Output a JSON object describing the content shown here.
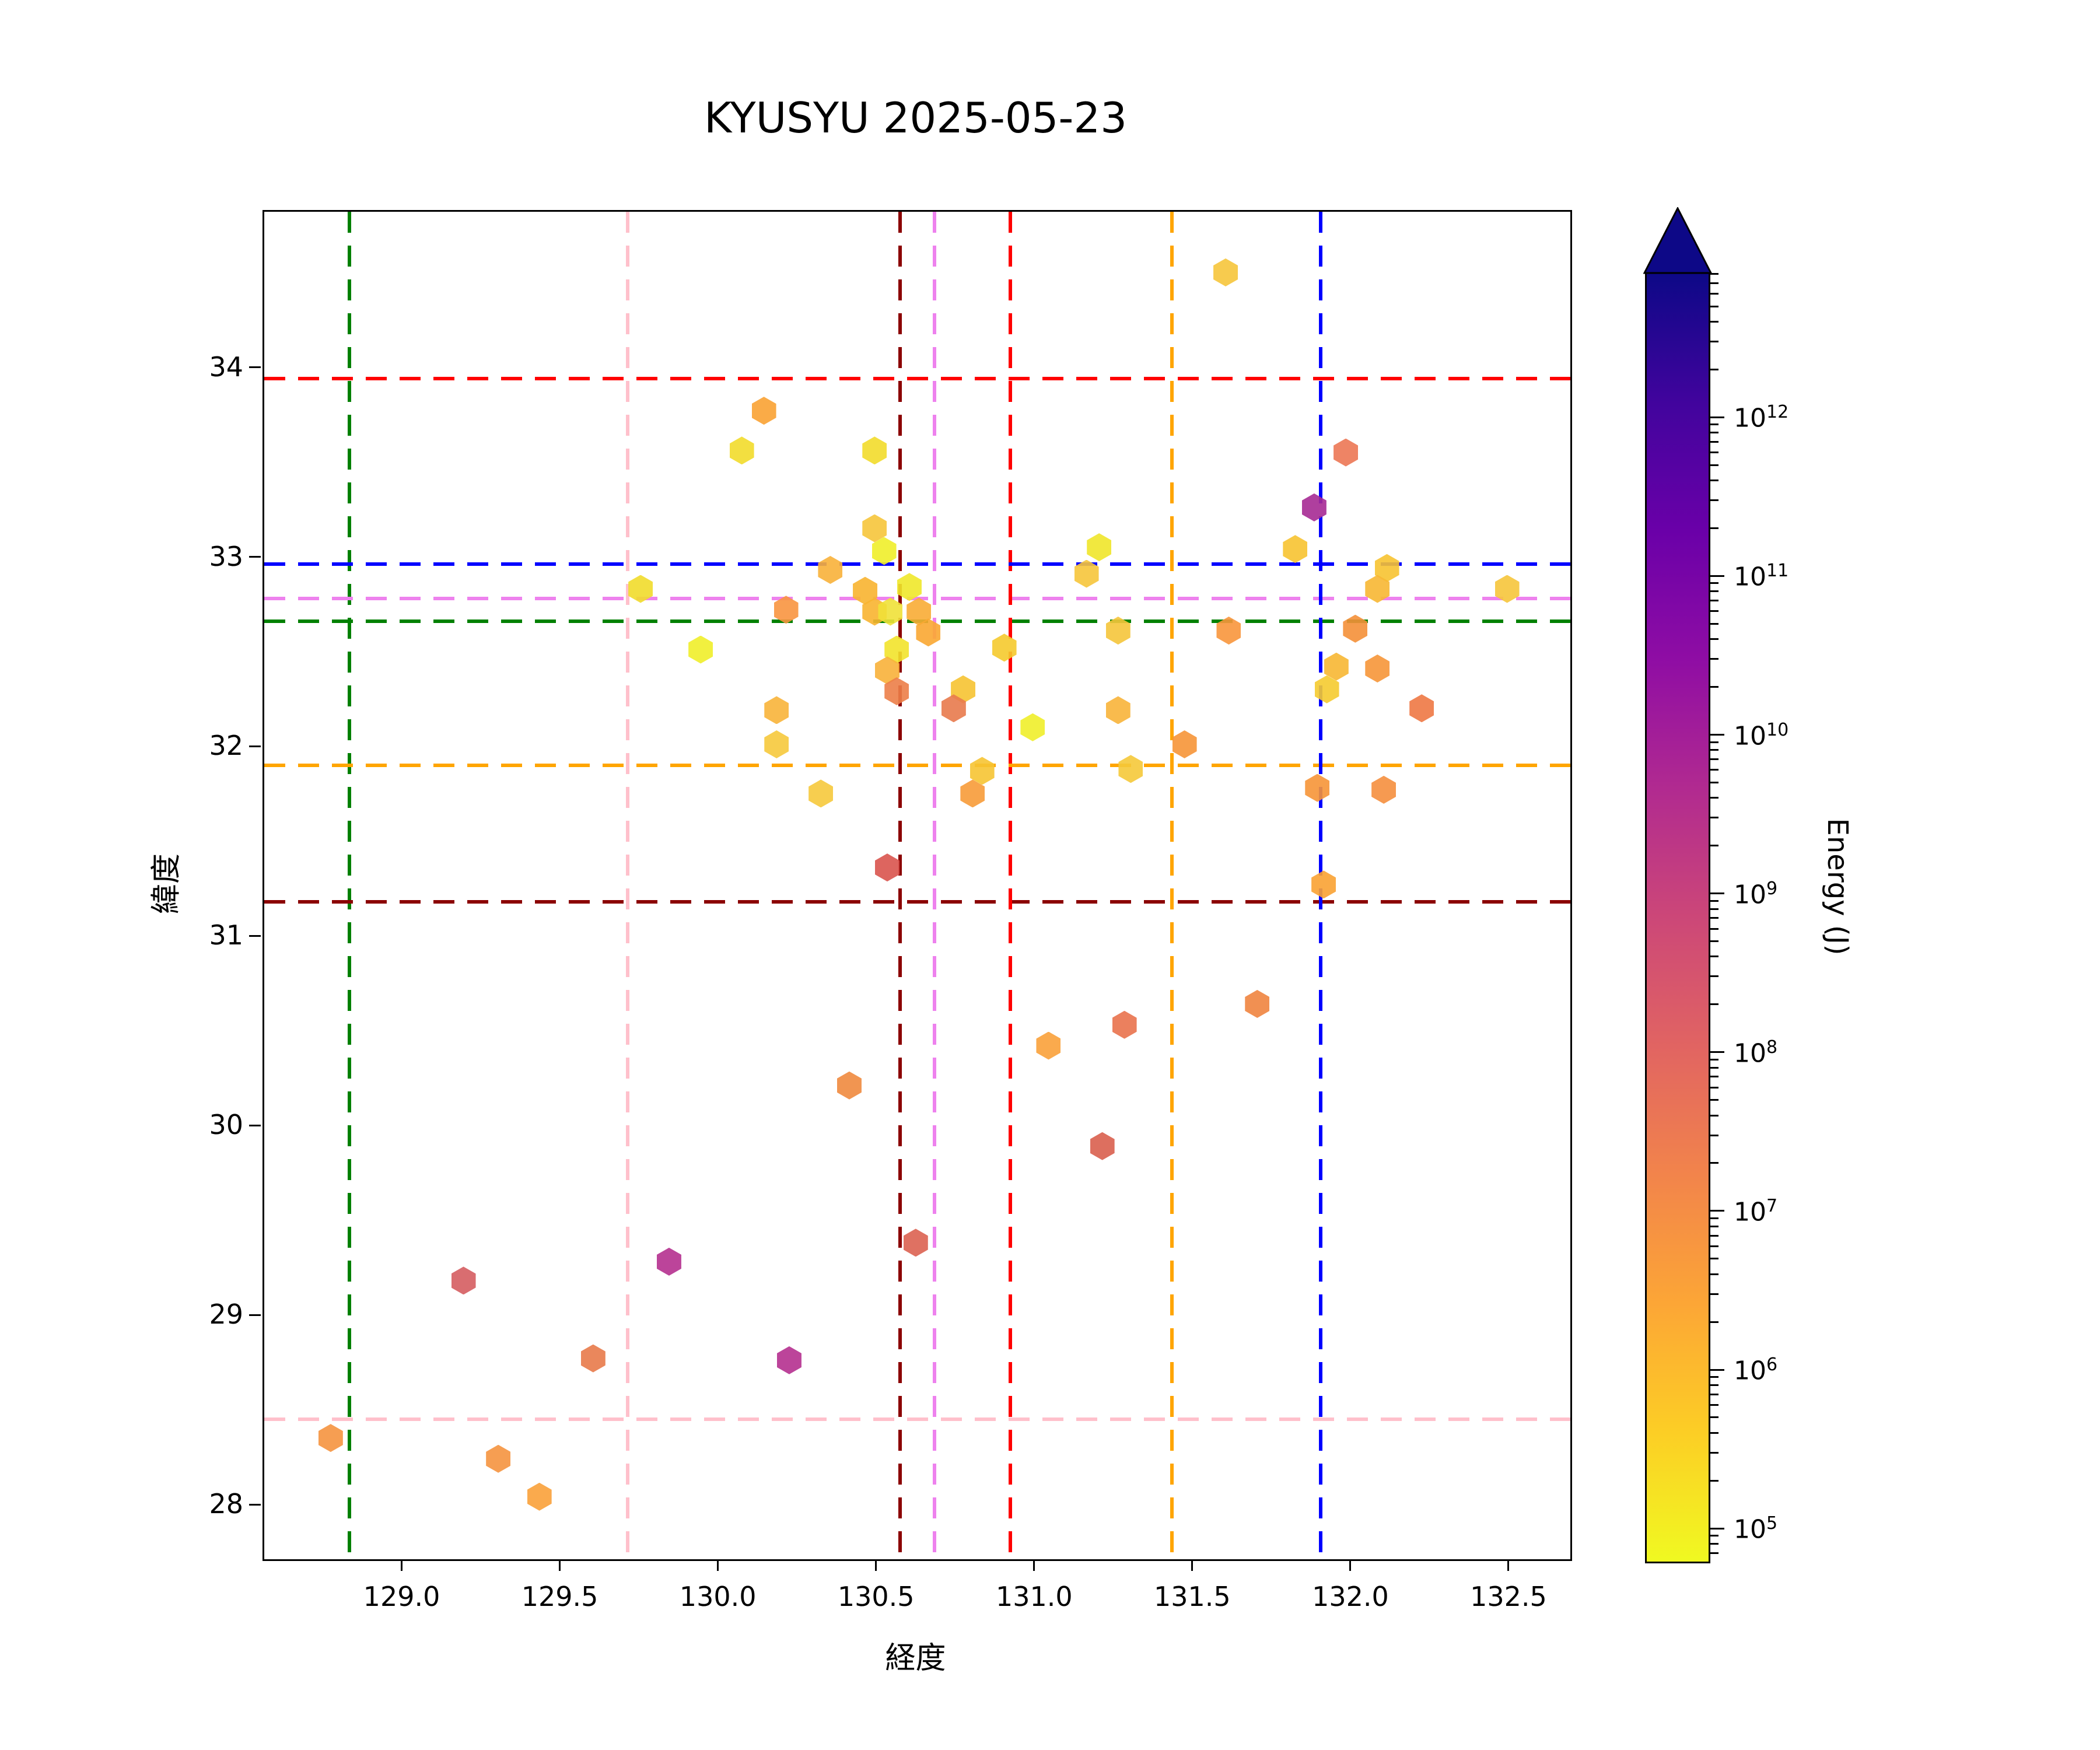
{
  "figure": {
    "title": "KYUSYU 2025-05-23"
  },
  "chart_data": {
    "type": "scatter",
    "title": "KYUSYU 2025-05-23",
    "xlabel": "経度",
    "ylabel": "緯度",
    "xlim": [
      128.56,
      132.69
    ],
    "ylim": [
      27.72,
      34.83
    ],
    "xticks": [
      129.0,
      129.5,
      130.0,
      130.5,
      131.0,
      131.5,
      132.0,
      132.5
    ],
    "yticks": [
      28,
      29,
      30,
      31,
      32,
      33,
      34
    ],
    "grid": false,
    "marker": "hexagon",
    "legend": "none",
    "colorbar": {
      "label": "Energy (J)",
      "scale": "log",
      "extend": "max",
      "colormap": "plasma reversed (yellow = low energy, dark navy = high energy)",
      "tick_exponents": [
        5,
        6,
        7,
        8,
        9,
        10,
        11,
        12
      ],
      "vmin_exp": 4.78,
      "vmax_exp": 12.92,
      "gradient_stops_top_to_bottom": [
        "#0d0887",
        "#41049d",
        "#6a00a8",
        "#8f0da4",
        "#b12a90",
        "#cc4778",
        "#e16462",
        "#f2844b",
        "#fca636",
        "#fcce25",
        "#f0f921"
      ],
      "arrow_color": "#0d0887"
    },
    "crosshairs": [
      {
        "name": "green",
        "color": "#008000",
        "lon": 128.83,
        "lat": 32.67
      },
      {
        "name": "pink",
        "color": "#ffc0cb",
        "lon": 129.71,
        "lat": 28.46
      },
      {
        "name": "darkred",
        "color": "#8b0000",
        "lon": 130.57,
        "lat": 31.19
      },
      {
        "name": "violet",
        "color": "#ee82ee",
        "lon": 130.68,
        "lat": 32.79
      },
      {
        "name": "red",
        "color": "#ff0000",
        "lon": 130.92,
        "lat": 33.95
      },
      {
        "name": "orange",
        "color": "#ffa500",
        "lon": 131.43,
        "lat": 31.91
      },
      {
        "name": "blue",
        "color": "#0000ff",
        "lon": 131.9,
        "lat": 32.97
      }
    ],
    "points_columns": [
      "lon",
      "lat",
      "color",
      "energy_j"
    ],
    "points": [
      [
        131.6,
        34.51,
        "#f6c53b",
        800000.0
      ],
      [
        130.14,
        33.78,
        "#f9a233",
        5000000.0
      ],
      [
        130.07,
        33.57,
        "#f2dc2b",
        300000.0
      ],
      [
        130.49,
        33.57,
        "#f2dc2b",
        300000.0
      ],
      [
        131.98,
        33.56,
        "#ec7754",
        50000000.0
      ],
      [
        131.88,
        33.27,
        "#a62a93",
        10000000000.0
      ],
      [
        130.49,
        33.16,
        "#f6c53b",
        800000.0
      ],
      [
        130.52,
        33.04,
        "#f0ee2a",
        100000.0
      ],
      [
        131.2,
        33.06,
        "#f0e62a",
        150000.0
      ],
      [
        131.16,
        32.92,
        "#f6c53b",
        800000.0
      ],
      [
        131.82,
        33.05,
        "#f7c331",
        900000.0
      ],
      [
        130.35,
        32.94,
        "#f8b13a",
        2000000.0
      ],
      [
        129.75,
        32.84,
        "#f1dc2b",
        300000.0
      ],
      [
        130.46,
        32.83,
        "#f8b430",
        2000000.0
      ],
      [
        130.6,
        32.85,
        "#f0e82a",
        120000.0
      ],
      [
        132.11,
        32.95,
        "#f7c331",
        900000.0
      ],
      [
        132.08,
        32.84,
        "#f7b733",
        1500000.0
      ],
      [
        132.49,
        32.84,
        "#f6c53b",
        800000.0
      ],
      [
        130.49,
        32.72,
        "#f8b430",
        2000000.0
      ],
      [
        130.54,
        32.72,
        "#f0e139",
        200000.0
      ],
      [
        130.63,
        32.72,
        "#f8ac35",
        2500000.0
      ],
      [
        130.66,
        32.61,
        "#f9a732",
        4000000.0
      ],
      [
        130.21,
        32.73,
        "#f89540",
        8000000.0
      ],
      [
        129.94,
        32.52,
        "#f0ee2a",
        100000.0
      ],
      [
        130.56,
        32.52,
        "#f2e32b",
        200000.0
      ],
      [
        130.53,
        32.41,
        "#f8b13a",
        2000000.0
      ],
      [
        130.56,
        32.3,
        "#ec7e48",
        30000000.0
      ],
      [
        130.9,
        32.53,
        "#f5ca2e",
        700000.0
      ],
      [
        130.77,
        32.31,
        "#f6c332",
        900000.0
      ],
      [
        130.74,
        32.21,
        "#e87a4c",
        40000000.0
      ],
      [
        130.99,
        32.11,
        "#f0ee2a",
        100000.0
      ],
      [
        130.18,
        32.2,
        "#f8b43a",
        2000000.0
      ],
      [
        130.18,
        32.02,
        "#f6c93c",
        700000.0
      ],
      [
        131.26,
        32.62,
        "#f5c53b",
        800000.0
      ],
      [
        131.61,
        32.62,
        "#f8963c",
        8000000.0
      ],
      [
        132.01,
        32.63,
        "#f49038",
        10000000.0
      ],
      [
        131.95,
        32.43,
        "#f7b733",
        1500000.0
      ],
      [
        132.08,
        32.42,
        "#f69638",
        8000000.0
      ],
      [
        131.92,
        32.31,
        "#f5cb30",
        600000.0
      ],
      [
        132.22,
        32.21,
        "#ee7844",
        30000000.0
      ],
      [
        131.26,
        32.2,
        "#f8b43a",
        2000000.0
      ],
      [
        131.47,
        32.02,
        "#f69537",
        8000000.0
      ],
      [
        131.3,
        31.89,
        "#f5c93a",
        700000.0
      ],
      [
        130.83,
        31.88,
        "#f6c433",
        900000.0
      ],
      [
        130.8,
        31.76,
        "#f79b39",
        6000000.0
      ],
      [
        130.32,
        31.76,
        "#f6c93c",
        700000.0
      ],
      [
        131.89,
        31.79,
        "#f69537",
        8000000.0
      ],
      [
        132.1,
        31.78,
        "#f58f3e",
        10000000.0
      ],
      [
        130.53,
        31.37,
        "#d9544e",
        100000000.0
      ],
      [
        131.91,
        31.28,
        "#f9a233",
        5000000.0
      ],
      [
        131.7,
        30.65,
        "#f0843f",
        20000000.0
      ],
      [
        130.41,
        30.22,
        "#f08a3e",
        15000000.0
      ],
      [
        131.04,
        30.43,
        "#f9a13a",
        5000000.0
      ],
      [
        131.28,
        30.54,
        "#e9724c",
        40000000.0
      ],
      [
        131.21,
        29.9,
        "#d95f4e",
        100000000.0
      ],
      [
        130.62,
        29.39,
        "#db6251",
        90000000.0
      ],
      [
        129.19,
        29.19,
        "#d55d60",
        120000000.0
      ],
      [
        129.6,
        28.78,
        "#e87a4a",
        40000000.0
      ],
      [
        128.77,
        28.36,
        "#f5933f",
        9000000.0
      ],
      [
        129.3,
        28.25,
        "#f5933f",
        9000000.0
      ],
      [
        129.43,
        28.05,
        "#f9a13a",
        5000000.0
      ],
      [
        129.84,
        29.29,
        "#b5308f",
        4000000000.0
      ],
      [
        130.22,
        28.77,
        "#b5308f",
        4000000000.0
      ]
    ]
  }
}
